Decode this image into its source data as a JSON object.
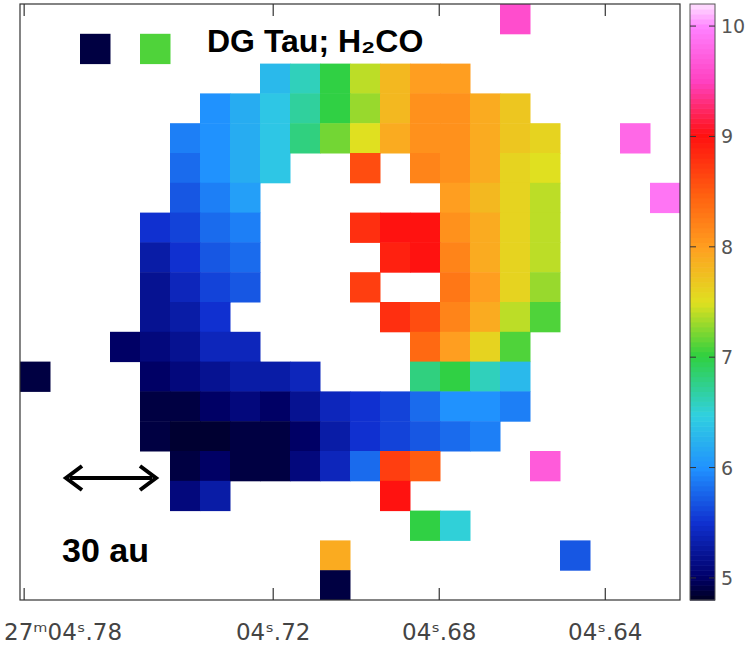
{
  "chart_data": {
    "type": "heatmap",
    "title": "DG Tau; H₂CO",
    "scalebar_label": "30 au",
    "xlim": [
      4.781,
      4.622
    ],
    "xticks": [
      {
        "value": 4.78,
        "label": "27ᵐ04ˢ.78"
      },
      {
        "value": 4.72,
        "label": "04ˢ.72"
      },
      {
        "value": 4.68,
        "label": "04ˢ.68"
      },
      {
        "value": 4.64,
        "label": "04ˢ.64"
      }
    ],
    "tick_labels": "x",
    "colorbar_range": [
      4.8,
      10.2
    ],
    "colorbar_ticks": [
      5,
      6,
      7,
      8,
      9,
      10
    ],
    "cells": [
      [
        null,
        null,
        null,
        null,
        null,
        null,
        null,
        null,
        null,
        null,
        null,
        null,
        null,
        null,
        null,
        null,
        9.6,
        null,
        null,
        null,
        null,
        null
      ],
      [
        null,
        null,
        4.9,
        null,
        7.1,
        null,
        null,
        null,
        null,
        null,
        null,
        null,
        null,
        null,
        null,
        null,
        null,
        null,
        null,
        null,
        null,
        null
      ],
      [
        null,
        null,
        null,
        null,
        null,
        null,
        null,
        null,
        6.3,
        6.6,
        7.0,
        7.4,
        7.8,
        8.0,
        8.0,
        null,
        null,
        null,
        null,
        null,
        null,
        null
      ],
      [
        null,
        null,
        null,
        null,
        null,
        null,
        6.0,
        6.2,
        6.4,
        6.7,
        7.0,
        7.3,
        7.8,
        8.1,
        8.1,
        7.9,
        7.7,
        null,
        null,
        null,
        null,
        null
      ],
      [
        null,
        null,
        null,
        null,
        null,
        5.9,
        6.0,
        6.2,
        6.4,
        6.8,
        7.2,
        7.5,
        7.9,
        8.1,
        8.1,
        7.9,
        7.7,
        7.6,
        null,
        null,
        9.8,
        null
      ],
      [
        null,
        null,
        null,
        null,
        null,
        5.8,
        6.0,
        6.2,
        6.4,
        null,
        null,
        8.6,
        null,
        8.2,
        8.1,
        7.9,
        7.6,
        7.5,
        null,
        null,
        null,
        null
      ],
      [
        null,
        null,
        null,
        null,
        null,
        5.7,
        5.9,
        6.1,
        null,
        null,
        null,
        null,
        null,
        null,
        8.0,
        7.8,
        7.6,
        7.4,
        null,
        null,
        null,
        9.9
      ],
      [
        null,
        null,
        null,
        null,
        5.5,
        5.6,
        5.8,
        5.9,
        null,
        null,
        null,
        8.8,
        9.0,
        9.0,
        8.1,
        7.9,
        7.6,
        7.4,
        null,
        null,
        null,
        null
      ],
      [
        null,
        null,
        null,
        null,
        5.3,
        5.5,
        5.7,
        5.8,
        null,
        null,
        null,
        null,
        8.9,
        9.0,
        8.2,
        7.9,
        7.6,
        7.4,
        null,
        null,
        null,
        null
      ],
      [
        null,
        null,
        null,
        null,
        5.2,
        5.4,
        5.6,
        5.7,
        null,
        null,
        null,
        8.7,
        null,
        null,
        8.3,
        8.0,
        7.6,
        7.3,
        null,
        null,
        null,
        null
      ],
      [
        null,
        null,
        null,
        null,
        5.2,
        5.3,
        5.5,
        null,
        null,
        null,
        null,
        null,
        8.8,
        8.6,
        8.2,
        7.9,
        7.4,
        7.1,
        null,
        null,
        null,
        null
      ],
      [
        null,
        null,
        null,
        5.0,
        5.1,
        5.2,
        5.4,
        5.4,
        null,
        null,
        null,
        null,
        null,
        8.4,
        8.0,
        7.6,
        7.1,
        null,
        null,
        null,
        null,
        null
      ],
      [
        4.9,
        null,
        null,
        null,
        5.0,
        5.1,
        5.2,
        5.3,
        5.3,
        5.4,
        null,
        null,
        null,
        6.8,
        7.0,
        6.6,
        6.3,
        null,
        null,
        null,
        null,
        null
      ],
      [
        null,
        null,
        null,
        null,
        4.9,
        4.9,
        5.0,
        5.1,
        5.0,
        5.2,
        5.4,
        5.5,
        5.6,
        5.8,
        6.0,
        6.0,
        5.9,
        null,
        null,
        null,
        null,
        null
      ],
      [
        null,
        null,
        null,
        null,
        4.9,
        4.85,
        4.85,
        4.9,
        4.9,
        5.0,
        5.3,
        5.5,
        5.6,
        5.7,
        5.8,
        5.9,
        null,
        null,
        null,
        null,
        null,
        null
      ],
      [
        null,
        null,
        null,
        null,
        null,
        4.9,
        5.0,
        4.9,
        4.9,
        5.1,
        5.4,
        5.8,
        8.7,
        8.5,
        null,
        null,
        null,
        9.7,
        null,
        null,
        null,
        null
      ],
      [
        null,
        null,
        null,
        null,
        null,
        5.1,
        5.3,
        null,
        null,
        null,
        null,
        null,
        9.0,
        null,
        null,
        null,
        null,
        null,
        null,
        null,
        null,
        null
      ],
      [
        null,
        null,
        null,
        null,
        null,
        null,
        null,
        null,
        null,
        null,
        null,
        null,
        null,
        7.0,
        6.5,
        null,
        null,
        null,
        null,
        null,
        null,
        null
      ],
      [
        null,
        null,
        null,
        null,
        null,
        null,
        null,
        null,
        null,
        null,
        7.9,
        null,
        null,
        null,
        null,
        null,
        null,
        null,
        5.7,
        null,
        null,
        null
      ],
      [
        null,
        null,
        null,
        null,
        null,
        null,
        null,
        null,
        null,
        null,
        4.9,
        null,
        null,
        null,
        null,
        null,
        null,
        null,
        null,
        null,
        null,
        null
      ]
    ]
  }
}
